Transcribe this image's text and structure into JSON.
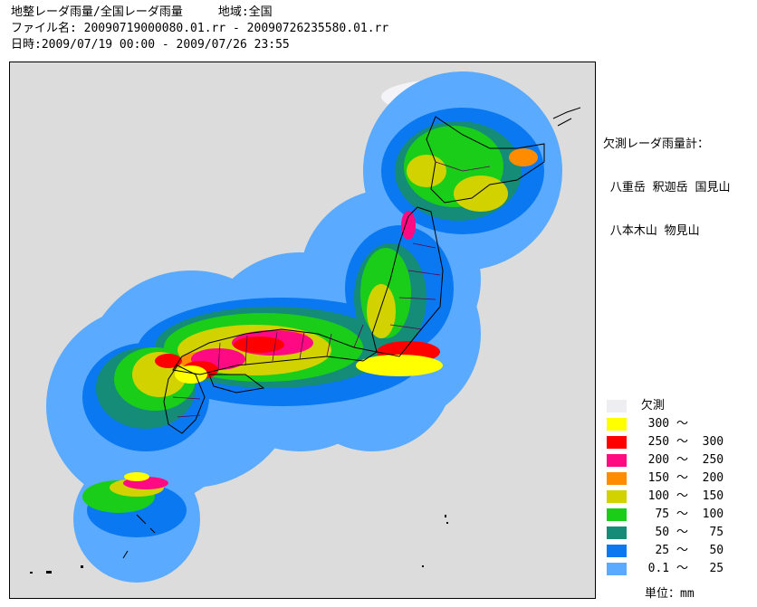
{
  "header": {
    "line1": "地整レーダ雨量/全国レーダ雨量　　　地域:全国",
    "line2": "ファイル名: 20090719000080.01.rr - 20090726235580.01.rr",
    "line3": "日時:2009/07/19 00:00 - 2009/07/26 23:55"
  },
  "missing_radars": {
    "title": "欠測レーダ雨量計：",
    "line1": " 八重岳 釈迦岳 国見山",
    "line2": " 八本木山 物見山"
  },
  "legend": {
    "items": [
      {
        "label": " 欠測",
        "color": "#ededf2"
      },
      {
        "label": "  300 ～",
        "color": "#ffff00"
      },
      {
        "label": "  250 ～  300",
        "color": "#ff0000"
      },
      {
        "label": "  200 ～  250",
        "color": "#ff0a82"
      },
      {
        "label": "  150 ～  200",
        "color": "#ff8c00"
      },
      {
        "label": "  100 ～  150",
        "color": "#d2d200"
      },
      {
        "label": "   75 ～  100",
        "color": "#19cd19"
      },
      {
        "label": "   50 ～   75",
        "color": "#148c78"
      },
      {
        "label": "   25 ～   50",
        "color": "#0a78f0"
      },
      {
        "label": "  0.1 ～   25",
        "color": "#5aaaff"
      }
    ],
    "unit": "単位：mm"
  },
  "colors": {
    "background": "#dcdcdc",
    "coast": "#000000",
    "prefecture": "#5a0050"
  }
}
